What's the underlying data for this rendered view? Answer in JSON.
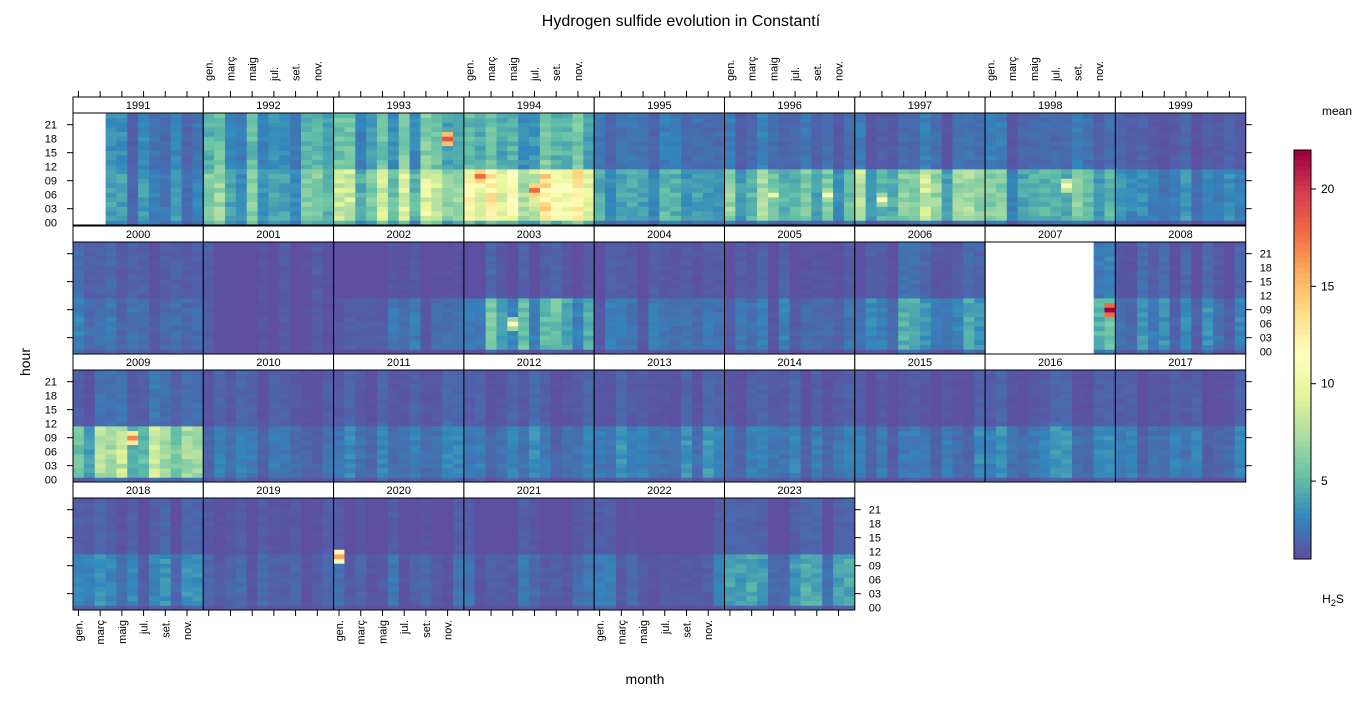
{
  "chart_data": {
    "type": "heatmap",
    "title": "Hydrogen sulfide evolution in Constantí",
    "xlabel": "month",
    "ylabel": "hour",
    "panel_variable": "year",
    "panels": [
      "1991",
      "1992",
      "1993",
      "1994",
      "1995",
      "1996",
      "1997",
      "1998",
      "1999",
      "2000",
      "2001",
      "2002",
      "2003",
      "2004",
      "2005",
      "2006",
      "2007",
      "2008",
      "2009",
      "2010",
      "2011",
      "2012",
      "2013",
      "2014",
      "2015",
      "2016",
      "2017",
      "2018",
      "2019",
      "2020",
      "2021",
      "2022",
      "2023"
    ],
    "x_tick_labels": [
      "gen.",
      "març",
      "maig",
      "jul.",
      "set.",
      "nov."
    ],
    "x_tick_months": [
      1,
      3,
      5,
      7,
      9,
      11
    ],
    "y_tick_labels": [
      "00",
      "03",
      "06",
      "09",
      "12",
      "15",
      "18",
      "21"
    ],
    "y_tick_hours": [
      0,
      3,
      6,
      9,
      12,
      15,
      18,
      21
    ],
    "x_range": [
      1,
      12
    ],
    "y_range": [
      0,
      23
    ],
    "legend": {
      "title": "mean",
      "subtitle": "H2S",
      "placement": "right",
      "ticks": [
        5,
        10,
        15,
        20
      ],
      "range": [
        1,
        22
      ],
      "colors": [
        "#5E4FA2",
        "#3288BD",
        "#66C2A5",
        "#ABDDA4",
        "#E6F598",
        "#FFFFBF",
        "#FEE08B",
        "#FDAE61",
        "#F46D43",
        "#D53E4F",
        "#9E0142"
      ]
    },
    "year_summary": [
      {
        "year": "1991",
        "level_night": 2.5,
        "level_day": 3.0,
        "missing_months": [
          1,
          2,
          3
        ]
      },
      {
        "year": "1992",
        "level_night": 4.0,
        "level_day": 5.0,
        "missing_months": []
      },
      {
        "year": "1993",
        "level_night": 4.5,
        "level_day": 7.0,
        "missing_months": [],
        "peaks": [
          {
            "month": 11,
            "hour": 18,
            "value": 19
          }
        ]
      },
      {
        "year": "1994",
        "level_night": 4.0,
        "level_day": 9.0,
        "missing_months": [],
        "peaks": [
          {
            "month": 2,
            "hour": 10,
            "value": 18
          },
          {
            "month": 7,
            "hour": 7,
            "value": 18
          }
        ]
      },
      {
        "year": "1995",
        "level_night": 2.0,
        "level_day": 3.5,
        "missing_months": []
      },
      {
        "year": "1996",
        "level_night": 2.0,
        "level_day": 5.0,
        "missing_months": [],
        "peaks": [
          {
            "month": 5,
            "hour": 6,
            "value": 10
          },
          {
            "month": 10,
            "hour": 6,
            "value": 11
          }
        ]
      },
      {
        "year": "1997",
        "level_night": 2.0,
        "level_day": 6.0,
        "missing_months": [],
        "peaks": [
          {
            "month": 3,
            "hour": 5,
            "value": 11
          }
        ]
      },
      {
        "year": "1998",
        "level_night": 2.0,
        "level_day": 4.5,
        "missing_months": [],
        "peaks": [
          {
            "month": 8,
            "hour": 8,
            "value": 12
          }
        ]
      },
      {
        "year": "1999",
        "level_night": 1.3,
        "level_day": 2.5,
        "missing_months": []
      },
      {
        "year": "2000",
        "level_night": 1.5,
        "level_day": 2.0,
        "missing_months": []
      },
      {
        "year": "2001",
        "level_night": 1.0,
        "level_day": 1.0,
        "missing_months": []
      },
      {
        "year": "2002",
        "level_night": 1.0,
        "level_day": 2.0,
        "missing_months": []
      },
      {
        "year": "2003",
        "level_night": 1.3,
        "level_day": 4.0,
        "missing_months": [],
        "peaks": [
          {
            "month": 5,
            "hour": 6,
            "value": 11
          }
        ]
      },
      {
        "year": "2004",
        "level_night": 1.2,
        "level_day": 2.0,
        "missing_months": []
      },
      {
        "year": "2005",
        "level_night": 1.2,
        "level_day": 2.0,
        "missing_months": []
      },
      {
        "year": "2006",
        "level_night": 1.5,
        "level_day": 3.0,
        "missing_months": []
      },
      {
        "year": "2007",
        "level_night": 2.5,
        "level_day": 4.5,
        "missing_months": [
          1,
          2,
          3,
          4,
          5,
          6,
          7,
          8,
          9,
          10
        ],
        "peaks": [
          {
            "month": 12,
            "hour": 9,
            "value": 22
          }
        ]
      },
      {
        "year": "2008",
        "level_night": 1.5,
        "level_day": 2.5,
        "missing_months": []
      },
      {
        "year": "2009",
        "level_night": 1.8,
        "level_day": 6.0,
        "missing_months": [],
        "peaks": [
          {
            "month": 6,
            "hour": 9,
            "value": 17
          }
        ]
      },
      {
        "year": "2010",
        "level_night": 1.3,
        "level_day": 2.0,
        "missing_months": []
      },
      {
        "year": "2011",
        "level_night": 1.5,
        "level_day": 2.5,
        "missing_months": []
      },
      {
        "year": "2012",
        "level_night": 1.5,
        "level_day": 2.5,
        "missing_months": []
      },
      {
        "year": "2013",
        "level_night": 1.3,
        "level_day": 2.5,
        "missing_months": []
      },
      {
        "year": "2014",
        "level_night": 1.3,
        "level_day": 2.2,
        "missing_months": []
      },
      {
        "year": "2015",
        "level_night": 1.3,
        "level_day": 2.5,
        "missing_months": []
      },
      {
        "year": "2016",
        "level_night": 1.3,
        "level_day": 2.5,
        "missing_months": []
      },
      {
        "year": "2017",
        "level_night": 1.3,
        "level_day": 2.3,
        "missing_months": []
      },
      {
        "year": "2018",
        "level_night": 1.3,
        "level_day": 2.5,
        "missing_months": []
      },
      {
        "year": "2019",
        "level_night": 1.1,
        "level_day": 1.5,
        "missing_months": []
      },
      {
        "year": "2020",
        "level_night": 1.1,
        "level_day": 1.8,
        "missing_months": [],
        "peaks": [
          {
            "month": 1,
            "hour": 11,
            "value": 16
          }
        ]
      },
      {
        "year": "2021",
        "level_night": 1.1,
        "level_day": 1.8,
        "missing_months": []
      },
      {
        "year": "2022",
        "level_night": 1.1,
        "level_day": 2.0,
        "missing_months": []
      },
      {
        "year": "2023",
        "level_night": 1.3,
        "level_day": 3.0,
        "missing_months": []
      }
    ]
  }
}
